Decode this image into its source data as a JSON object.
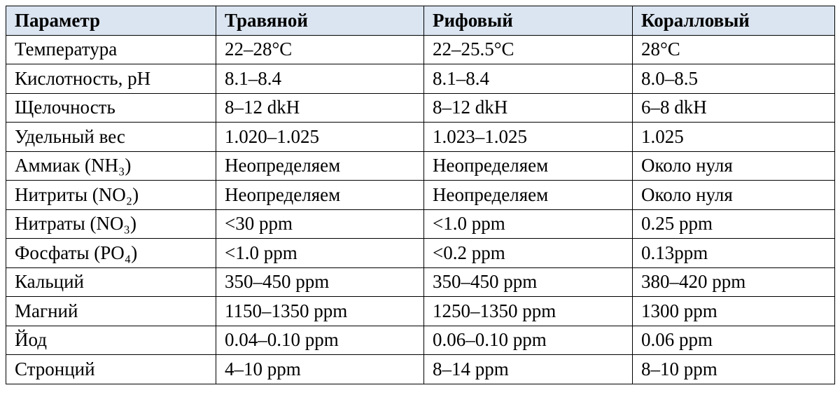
{
  "table": {
    "header": [
      "Параметр",
      "Травяной",
      "Рифовый",
      "Коралловый"
    ],
    "rows": [
      [
        "Температура",
        "22–28°C",
        "22–25.5°C",
        "28°C"
      ],
      [
        "Кислотность, pH",
        "8.1–8.4",
        "8.1–8.4",
        "8.0–8.5"
      ],
      [
        "Щелочность",
        "8–12 dkH",
        "8–12 dkH",
        "6–8 dkH"
      ],
      [
        "Удельный вес",
        "1.020–1.025",
        "1.023–1.025",
        "1.025"
      ],
      [
        "Аммиак (NH₃)",
        "Неопределяем",
        "Неопределяем",
        "Около нуля"
      ],
      [
        "Нитриты (NO₂)",
        "Неопределяем",
        "Неопределяем",
        "Около нуля"
      ],
      [
        "Нитраты (NO₃)",
        "<30 ppm",
        "<1.0 ppm",
        "0.25 ppm"
      ],
      [
        "Фосфаты (PO₄)",
        "<1.0 ppm",
        "<0.2 ppm",
        "0.13ppm"
      ],
      [
        "Кальций",
        "350–450 ppm",
        "350–450 ppm",
        "380–420 ppm"
      ],
      [
        "Магний",
        "1150–1350 ppm",
        "1250–1350 ppm",
        "1300 ppm"
      ],
      [
        "Йод",
        "0.04–0.10 ppm",
        "0.06–0.10 ppm",
        "0.06 ppm"
      ],
      [
        "Стронций",
        "4–10 ppm",
        "8–14 ppm",
        "8–10 ppm"
      ]
    ]
  }
}
